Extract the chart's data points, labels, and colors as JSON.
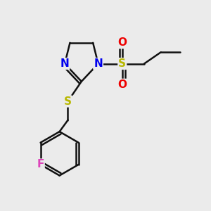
{
  "bg_color": "#ebebeb",
  "atom_colors": {
    "N": "#0000ee",
    "S": "#b8b800",
    "O": "#ee0000",
    "F": "#dd44bb",
    "C": "#111111"
  },
  "bond_color": "#111111",
  "bond_width": 1.8,
  "font_size_atom": 11
}
